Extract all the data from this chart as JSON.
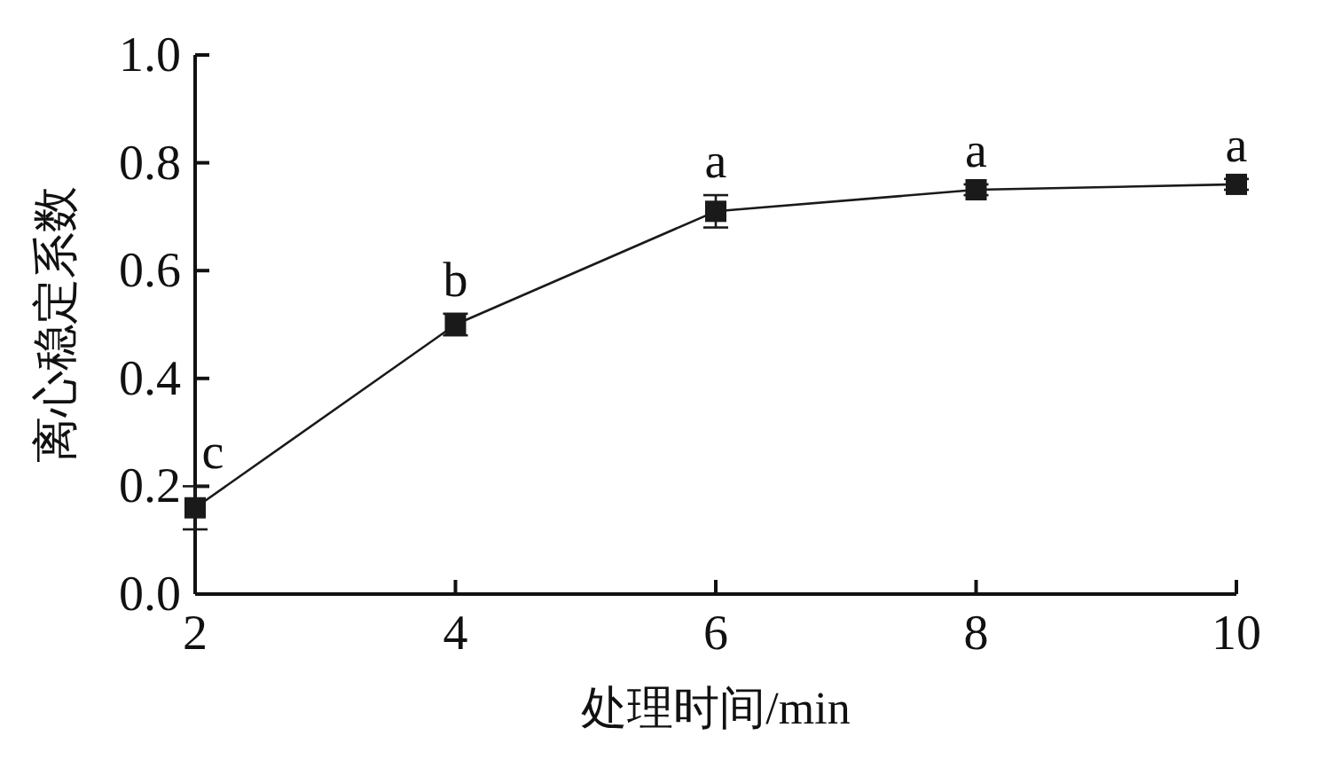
{
  "chart_data": {
    "type": "line",
    "xlabel": "处理时间/min",
    "ylabel": "离心稳定系数",
    "x": [
      2,
      4,
      6,
      8,
      10
    ],
    "series": [
      {
        "color": "#1a1a1a",
        "values": [
          0.16,
          0.5,
          0.71,
          0.75,
          0.76
        ],
        "errors": [
          0.04,
          0.02,
          0.03,
          0.01,
          0.01
        ]
      }
    ],
    "xlim": [
      2,
      10
    ],
    "xticks": [
      2,
      4,
      6,
      8,
      10
    ],
    "ylim": [
      0,
      1.0
    ],
    "yticks": [
      {
        "value": 0,
        "label": "0.0"
      },
      {
        "value": 0.2,
        "label": "0.2"
      },
      {
        "value": 0.4,
        "label": "0.4"
      },
      {
        "value": 0.6,
        "label": "0.6"
      },
      {
        "value": 0.8,
        "label": "0.8"
      },
      {
        "value": 1.0,
        "label": "1.0"
      }
    ],
    "marker": "square",
    "grid": false,
    "annotations": [
      {
        "text": "c",
        "x": 2,
        "y": 0.16
      },
      {
        "text": "b",
        "x": 4,
        "y": 0.5
      },
      {
        "text": "a",
        "x": 6,
        "y": 0.71
      },
      {
        "text": "a",
        "x": 8,
        "y": 0.75
      },
      {
        "text": "a",
        "x": 10,
        "y": 0.76
      }
    ]
  }
}
